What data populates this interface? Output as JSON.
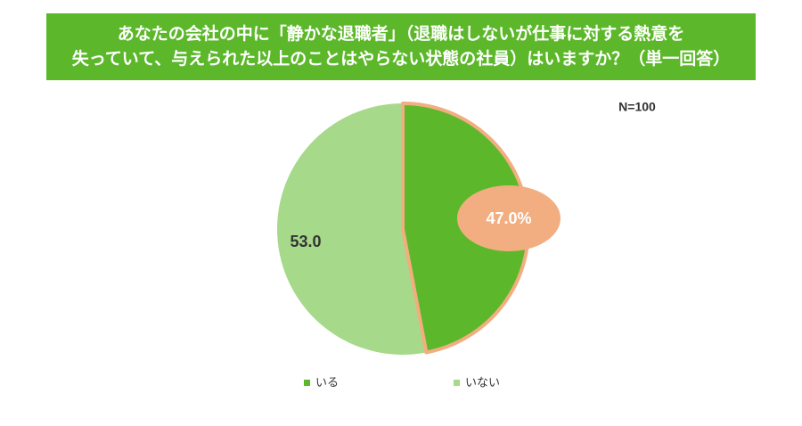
{
  "chart_data": {
    "type": "pie",
    "title": [
      "あなたの会社の中に「静かな退職者」（退職はしないが仕事に対する熱意を",
      "失っていて、与えられた以上のことはやらない状態の社員）はいますか？（単一回答）"
    ],
    "annotation": "N=100",
    "categories": [
      "いる",
      "いない"
    ],
    "values": [
      47.0,
      53.0
    ],
    "value_labels": [
      "47.0%",
      "53.0"
    ],
    "colors": [
      "#5cb82a",
      "#a6d98a"
    ],
    "highlight_color": "#f2ae80"
  }
}
